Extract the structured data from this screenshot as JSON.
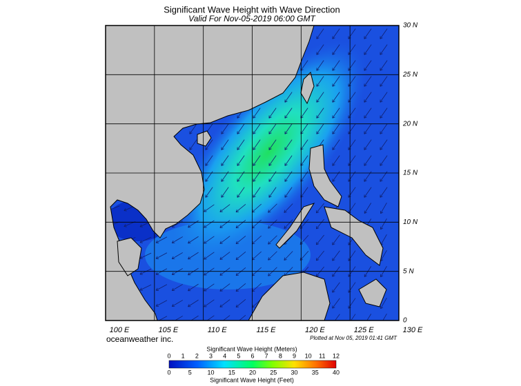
{
  "header": {
    "title": "Significant Wave Height with Wave Direction",
    "subtitle": "Valid For Nov-05-2019 06:00 GMT"
  },
  "map": {
    "lon_labels": [
      "100 E",
      "105 E",
      "110 E",
      "115 E",
      "120 E",
      "125 E",
      "130 E"
    ],
    "lat_labels": [
      "30 N",
      "25 N",
      "20 N",
      "15 N",
      "10 N",
      "5 N",
      "0"
    ]
  },
  "footer": {
    "credit": "oceanweather inc.",
    "plotted": "Plotted at Nov 05, 2019 01:41 GMT"
  },
  "colorbar": {
    "meters_title": "Significant Wave Height (Meters)",
    "meters_ticks": [
      "0",
      "1",
      "2",
      "3",
      "4",
      "5",
      "6",
      "7",
      "8",
      "9",
      "10",
      "11",
      "12"
    ],
    "feet_ticks": [
      "0",
      "5",
      "10",
      "15",
      "20",
      "25",
      "30",
      "35",
      "40"
    ],
    "feet_title": "Significant Wave Height (Feet)"
  }
}
